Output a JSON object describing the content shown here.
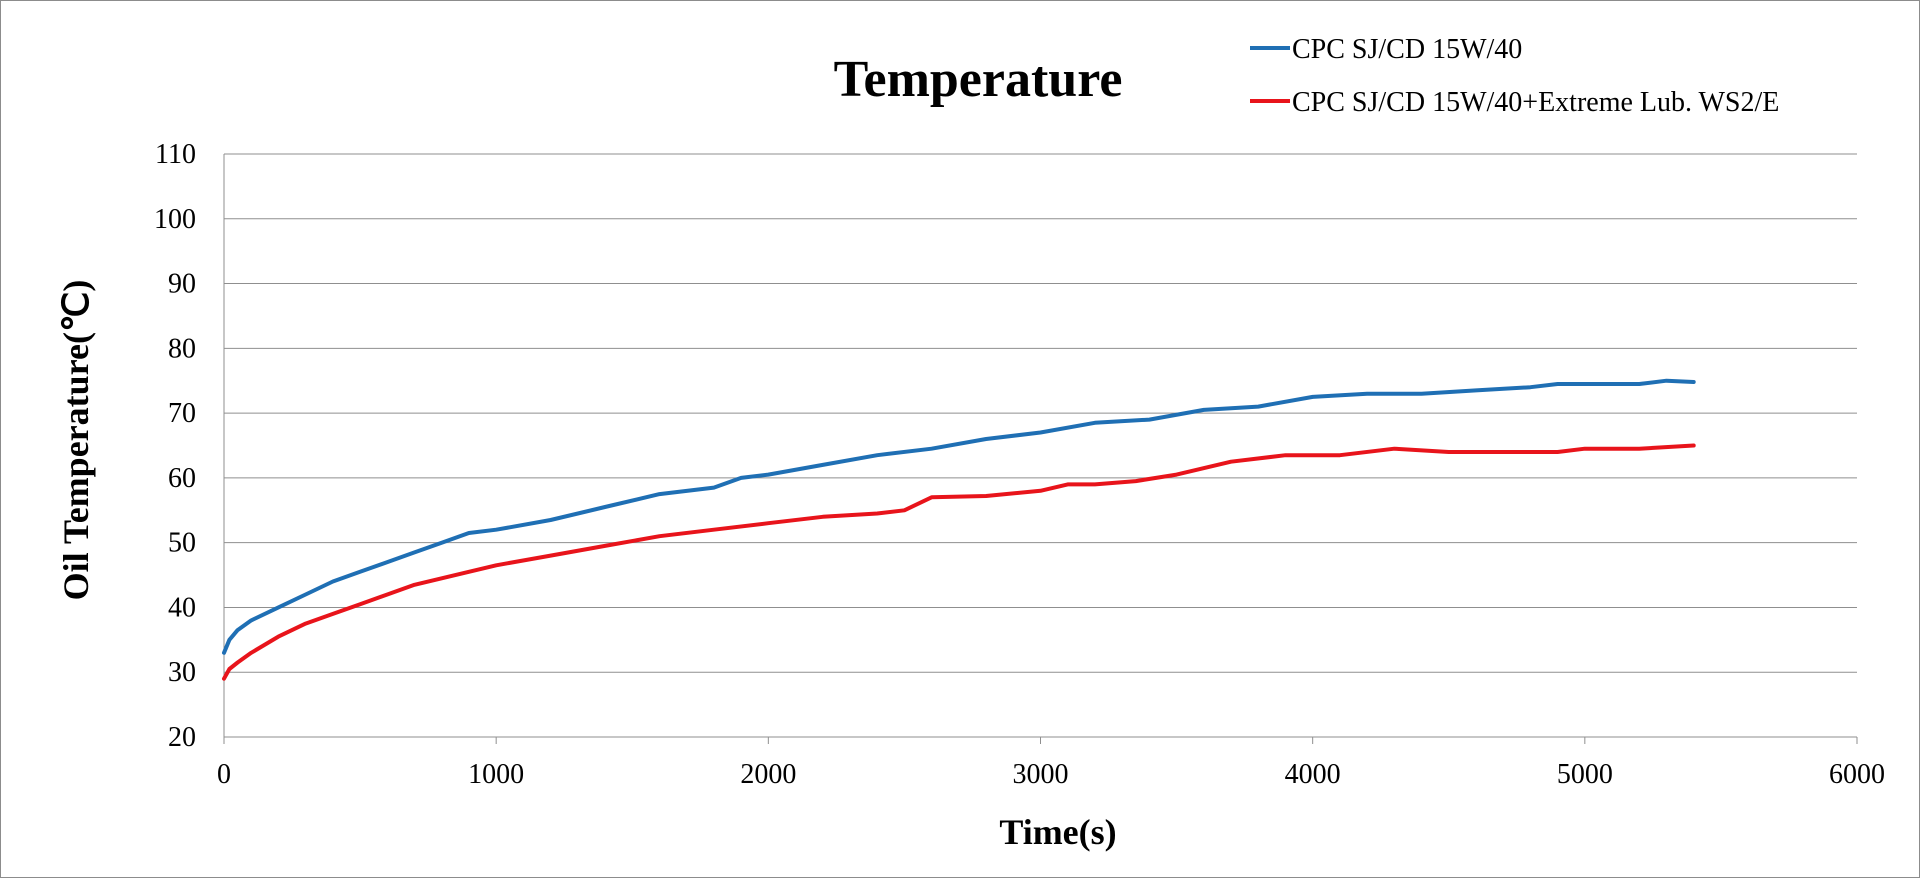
{
  "chart_data": {
    "type": "line",
    "title": "Temperature",
    "xlabel": "Time(s)",
    "ylabel": "Oil Temperature(℃)",
    "xlim": [
      0,
      6000
    ],
    "ylim": [
      20,
      110
    ],
    "x_ticks": [
      "0",
      "1000",
      "2000",
      "3000",
      "4000",
      "5000",
      "6000"
    ],
    "y_ticks": [
      "20",
      "30",
      "40",
      "50",
      "60",
      "70",
      "80",
      "90",
      "100",
      "110"
    ],
    "grid": "horizontal",
    "legend_position": "top-right",
    "series": [
      {
        "name": "CPC SJ/CD 15W/40",
        "color": "#1f6fb4",
        "x": [
          0,
          20,
          50,
          100,
          200,
          300,
          400,
          500,
          600,
          700,
          800,
          900,
          1000,
          1200,
          1400,
          1600,
          1800,
          1900,
          2000,
          2200,
          2400,
          2600,
          2800,
          3000,
          3200,
          3400,
          3600,
          3800,
          4000,
          4200,
          4400,
          4600,
          4800,
          4900,
          5000,
          5200,
          5300,
          5400
        ],
        "y": [
          33,
          35,
          36.5,
          38,
          40,
          42,
          44,
          45.5,
          47,
          48.5,
          50,
          51.5,
          52,
          53.5,
          55.5,
          57.5,
          58.5,
          60,
          60.5,
          62,
          63.5,
          64.5,
          66,
          67,
          68.5,
          69,
          70.5,
          71,
          72.5,
          73,
          73,
          73.5,
          74,
          74.5,
          74.5,
          74.5,
          75,
          74.8
        ]
      },
      {
        "name": "CPC SJ/CD 15W/40+Extreme Lub. WS2/E",
        "color": "#e8141b",
        "x": [
          0,
          20,
          50,
          100,
          200,
          300,
          400,
          500,
          600,
          700,
          800,
          900,
          1000,
          1200,
          1400,
          1600,
          1800,
          2000,
          2200,
          2400,
          2500,
          2600,
          2800,
          3000,
          3100,
          3200,
          3350,
          3500,
          3700,
          3900,
          4100,
          4300,
          4500,
          4700,
          4900,
          5000,
          5200,
          5400
        ],
        "y": [
          29,
          30.5,
          31.5,
          33,
          35.5,
          37.5,
          39,
          40.5,
          42,
          43.5,
          44.5,
          45.5,
          46.5,
          48,
          49.5,
          51,
          52,
          53,
          54,
          54.5,
          55,
          57,
          57.2,
          58,
          59,
          59,
          59.5,
          60.5,
          62.5,
          63.5,
          63.5,
          64.5,
          64,
          64,
          64,
          64.5,
          64.5,
          65
        ]
      }
    ]
  }
}
